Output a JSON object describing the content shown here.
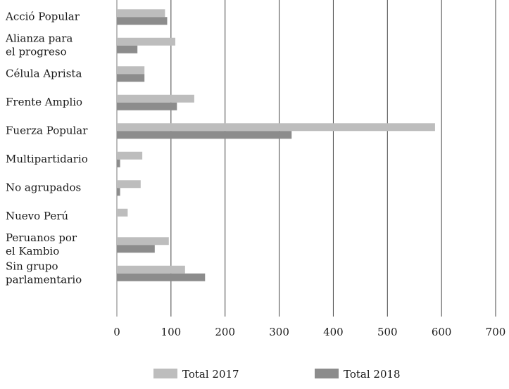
{
  "chart_data": {
    "type": "bar",
    "orientation": "horizontal",
    "categories": [
      [
        "Acció Popular"
      ],
      [
        "Alianza para",
        "el progreso"
      ],
      [
        "Célula Aprista"
      ],
      [
        "Frente Amplio"
      ],
      [
        "Fuerza Popular"
      ],
      [
        "Multipartidario"
      ],
      [
        "No agrupados"
      ],
      [
        "Nuevo Perú"
      ],
      [
        "Peruanos por",
        "el Kambio"
      ],
      [
        "Sin grupo",
        "parlamentario"
      ]
    ],
    "series": [
      {
        "name": "Total 2017",
        "color": "#bdbdbd",
        "values": [
          89,
          108,
          51,
          143,
          588,
          47,
          44,
          20,
          96,
          126
        ]
      },
      {
        "name": "Total 2018",
        "color": "#8c8c8c",
        "values": [
          93,
          38,
          51,
          111,
          323,
          6,
          6,
          0,
          70,
          163
        ]
      }
    ],
    "xlim": [
      0,
      700
    ],
    "xticks": [
      0,
      100,
      200,
      300,
      400,
      500,
      600,
      700
    ],
    "grid": "vertical",
    "legend": "bottom-center"
  }
}
